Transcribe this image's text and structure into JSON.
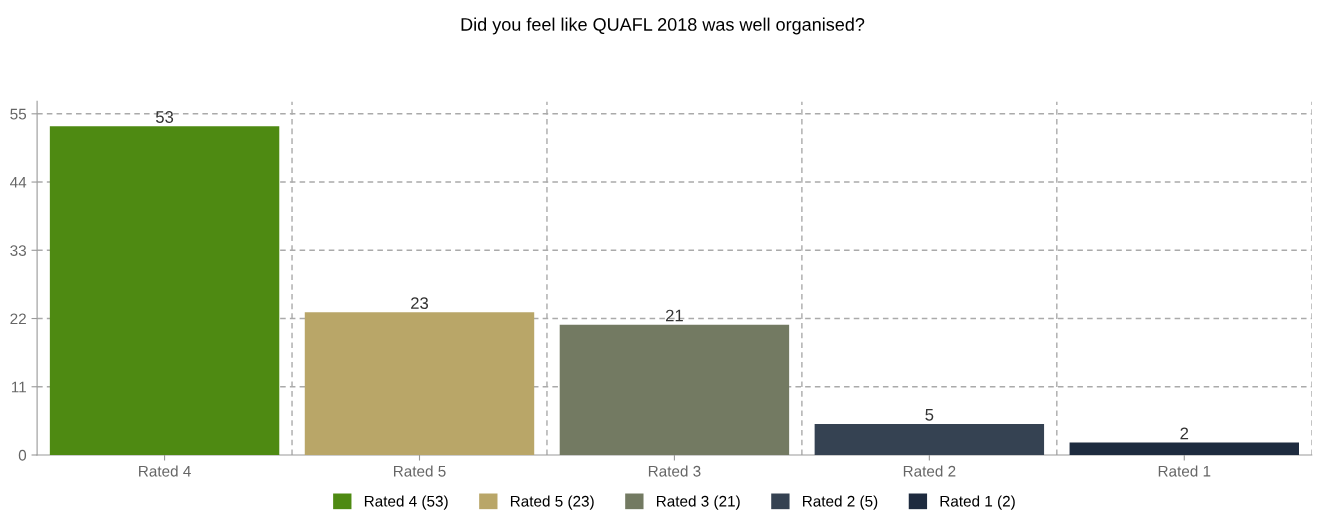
{
  "chart_data": {
    "type": "bar",
    "title": "Did you feel like QUAFL 2018 was well organised?",
    "categories": [
      "Rated 4",
      "Rated 5",
      "Rated 3",
      "Rated 2",
      "Rated 1"
    ],
    "series": [
      {
        "name": "Rated 4 (53)",
        "color": "#4e8a12",
        "values": [
          53,
          null,
          null,
          null,
          null
        ]
      },
      {
        "name": "Rated 5 (23)",
        "color": "#b9a668",
        "values": [
          null,
          23,
          null,
          null,
          null
        ]
      },
      {
        "name": "Rated 3 (21)",
        "color": "#737a62",
        "values": [
          null,
          null,
          21,
          null,
          null
        ]
      },
      {
        "name": "Rated 2 (5)",
        "color": "#354252",
        "values": [
          null,
          null,
          null,
          5,
          null
        ]
      },
      {
        "name": "Rated 1 (2)",
        "color": "#1e2b3f",
        "values": [
          null,
          null,
          null,
          null,
          2
        ]
      }
    ],
    "ylim": [
      0,
      57
    ],
    "yticks": [
      0,
      11,
      22,
      33,
      44,
      55
    ],
    "grid": true,
    "legend": "bottom",
    "data_labels": true
  }
}
